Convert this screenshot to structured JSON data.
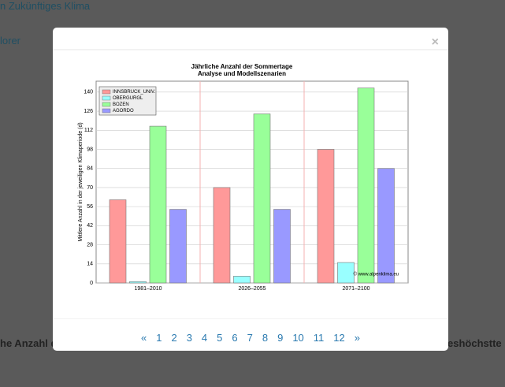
{
  "background": {
    "title": "n Zukünftiges Klima",
    "tab": "lorer",
    "left_heading": "he Anzahl d",
    "right_heading": "eshöchstte"
  },
  "modal": {
    "close": "×",
    "pagination": {
      "prev": "«",
      "pages": [
        "1",
        "2",
        "3",
        "4",
        "5",
        "6",
        "7",
        "8",
        "9",
        "10",
        "11",
        "12"
      ],
      "next": "»"
    }
  },
  "chart_data": {
    "type": "bar",
    "title": "Jährliche Anzahl der Sommertage",
    "subtitle": "Analyse und Modellszenarien",
    "y_label": "Mittlere Anzahl in der jeweiligen Klimaperiode (d)",
    "annotation": "© www.alpenklima.eu",
    "categories": [
      "1981–2010",
      "2026–2055",
      "2071–2100"
    ],
    "series": [
      {
        "name": "INNSBRUCK_UNIV.",
        "color": "#ff9999",
        "values": [
          61,
          70,
          98
        ]
      },
      {
        "name": "OBERGURGL",
        "color": "#99ffff",
        "values": [
          1,
          5,
          15
        ]
      },
      {
        "name": "BOZEN",
        "color": "#99ff99",
        "values": [
          115,
          124,
          143
        ]
      },
      {
        "name": "AGORDO",
        "color": "#9999ff",
        "values": [
          54,
          54,
          84
        ]
      }
    ],
    "ylim": [
      0,
      148
    ],
    "yticks": [
      0,
      14,
      28,
      42,
      56,
      70,
      84,
      98,
      112,
      126,
      140
    ],
    "grid": true,
    "legend": "top-left"
  }
}
